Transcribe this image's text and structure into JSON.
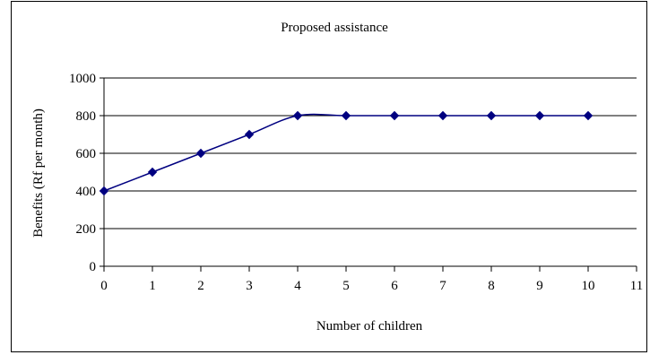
{
  "chart_data": {
    "type": "line",
    "title": "Proposed assistance",
    "xlabel": "Number of children",
    "ylabel": "Benefits (Rf per month)",
    "x": [
      0,
      1,
      2,
      3,
      4,
      5,
      6,
      7,
      8,
      9,
      10
    ],
    "series": [
      {
        "values": [
          400,
          500,
          600,
          700,
          800,
          800,
          800,
          800,
          800,
          800,
          800
        ],
        "color": "#000080"
      }
    ],
    "xlim": [
      0,
      11
    ],
    "ylim": [
      0,
      1000
    ],
    "xticks": [
      "0",
      "1",
      "2",
      "3",
      "4",
      "5",
      "6",
      "7",
      "8",
      "9",
      "10",
      "11"
    ],
    "yticks": [
      "0",
      "200",
      "400",
      "600",
      "800",
      "1000"
    ],
    "grid": "horizontal",
    "legend": "none"
  }
}
